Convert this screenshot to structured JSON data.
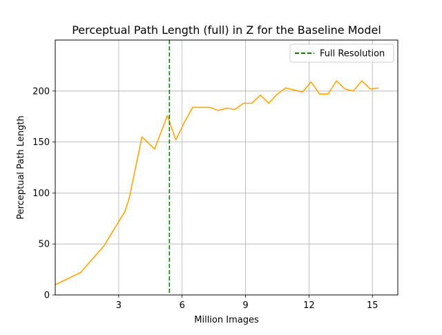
{
  "chart_data": {
    "type": "line",
    "title": "Perceptual Path Length (full) in Z for the Baseline Model",
    "xlabel": "Million Images",
    "ylabel": "Perceptual Path Length",
    "xlim": [
      0,
      16.2
    ],
    "ylim": [
      0,
      250
    ],
    "grid": true,
    "legend_placement": "top-right",
    "x_ticks": [
      3,
      6,
      9,
      12,
      15
    ],
    "y_ticks": [
      0,
      50,
      100,
      150,
      200
    ],
    "series": [
      {
        "color": "#ffa500",
        "x": [
          0,
          1.2,
          2.3,
          3.3,
          3.5,
          4.1,
          4.7,
          5.3,
          5.7,
          6.1,
          6.5,
          6.9,
          7.3,
          7.7,
          8.1,
          8.5,
          8.9,
          9.3,
          9.7,
          10.1,
          10.5,
          10.9,
          11.3,
          11.7,
          12.1,
          12.5,
          12.9,
          13.3,
          13.7,
          14.1,
          14.5,
          14.9,
          15.3
        ],
        "values": [
          10,
          22,
          48,
          82,
          95,
          155,
          143,
          176,
          152,
          169,
          184,
          184,
          184,
          181,
          183,
          182,
          188,
          188,
          196,
          188,
          197,
          203,
          201,
          199,
          209,
          197,
          197,
          210,
          202,
          200,
          210,
          202,
          203
        ]
      }
    ],
    "vlines": [
      {
        "x": 5.4,
        "color": "#008000",
        "style": "dashed",
        "label": "Full Resolution"
      }
    ],
    "legend": [
      {
        "label": "Full Resolution",
        "color": "#008000",
        "style": "dashed"
      }
    ]
  }
}
